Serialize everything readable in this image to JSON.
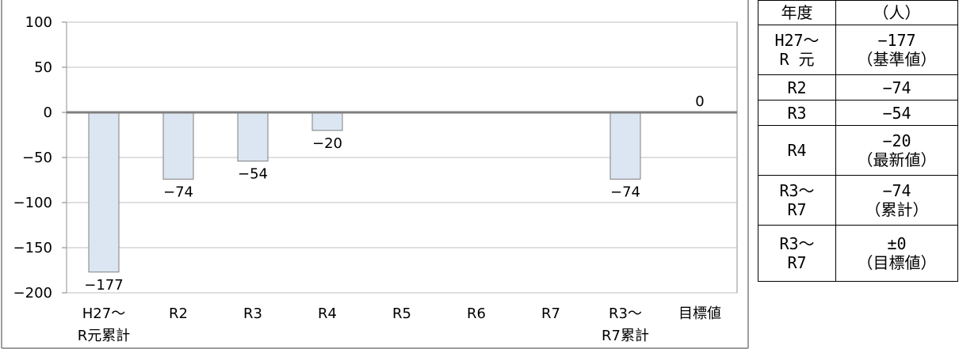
{
  "chart_data": {
    "type": "bar",
    "categories": [
      [
        "H27～",
        "R元累計"
      ],
      [
        "R2"
      ],
      [
        "R3"
      ],
      [
        "R4"
      ],
      [
        "R5"
      ],
      [
        "R6"
      ],
      [
        "R7"
      ],
      [
        "R3～",
        "R7累計"
      ],
      [
        "目標値"
      ]
    ],
    "values": [
      -177,
      -74,
      -54,
      -20,
      null,
      null,
      null,
      -74,
      0
    ],
    "data_labels": [
      "−177",
      "−74",
      "−54",
      "−20",
      "",
      "",
      "",
      "−74",
      "0"
    ],
    "ylim": [
      -200,
      100
    ],
    "yticks": [
      100,
      50,
      0,
      -50,
      -100,
      -150,
      -200
    ],
    "ytick_labels": [
      "100",
      "50",
      "0",
      "−50",
      "−100",
      "−150",
      "−200"
    ],
    "title": "",
    "xlabel": "",
    "ylabel": "",
    "grid": true,
    "bar_fill": "#dce6f2",
    "bar_stroke": "#7f7f7f",
    "zero_line_color": "#7f7f7f",
    "grid_color": "#bfbfbf"
  },
  "table": {
    "header": [
      "年度",
      "（人）"
    ],
    "rows": [
      {
        "year": [
          "H27～",
          "R 元"
        ],
        "value": [
          "−177",
          "（基準値）"
        ]
      },
      {
        "year": [
          "R2"
        ],
        "value": [
          "−74"
        ]
      },
      {
        "year": [
          "R3"
        ],
        "value": [
          "−54"
        ]
      },
      {
        "year": [
          "R4"
        ],
        "value": [
          "−20",
          "（最新値）"
        ]
      },
      {
        "year": [
          "R3～",
          "R7"
        ],
        "value": [
          "−74",
          "（累計）"
        ]
      },
      {
        "year": [
          "R3～",
          "R7"
        ],
        "value": [
          "±0",
          "（目標値）"
        ]
      }
    ]
  }
}
